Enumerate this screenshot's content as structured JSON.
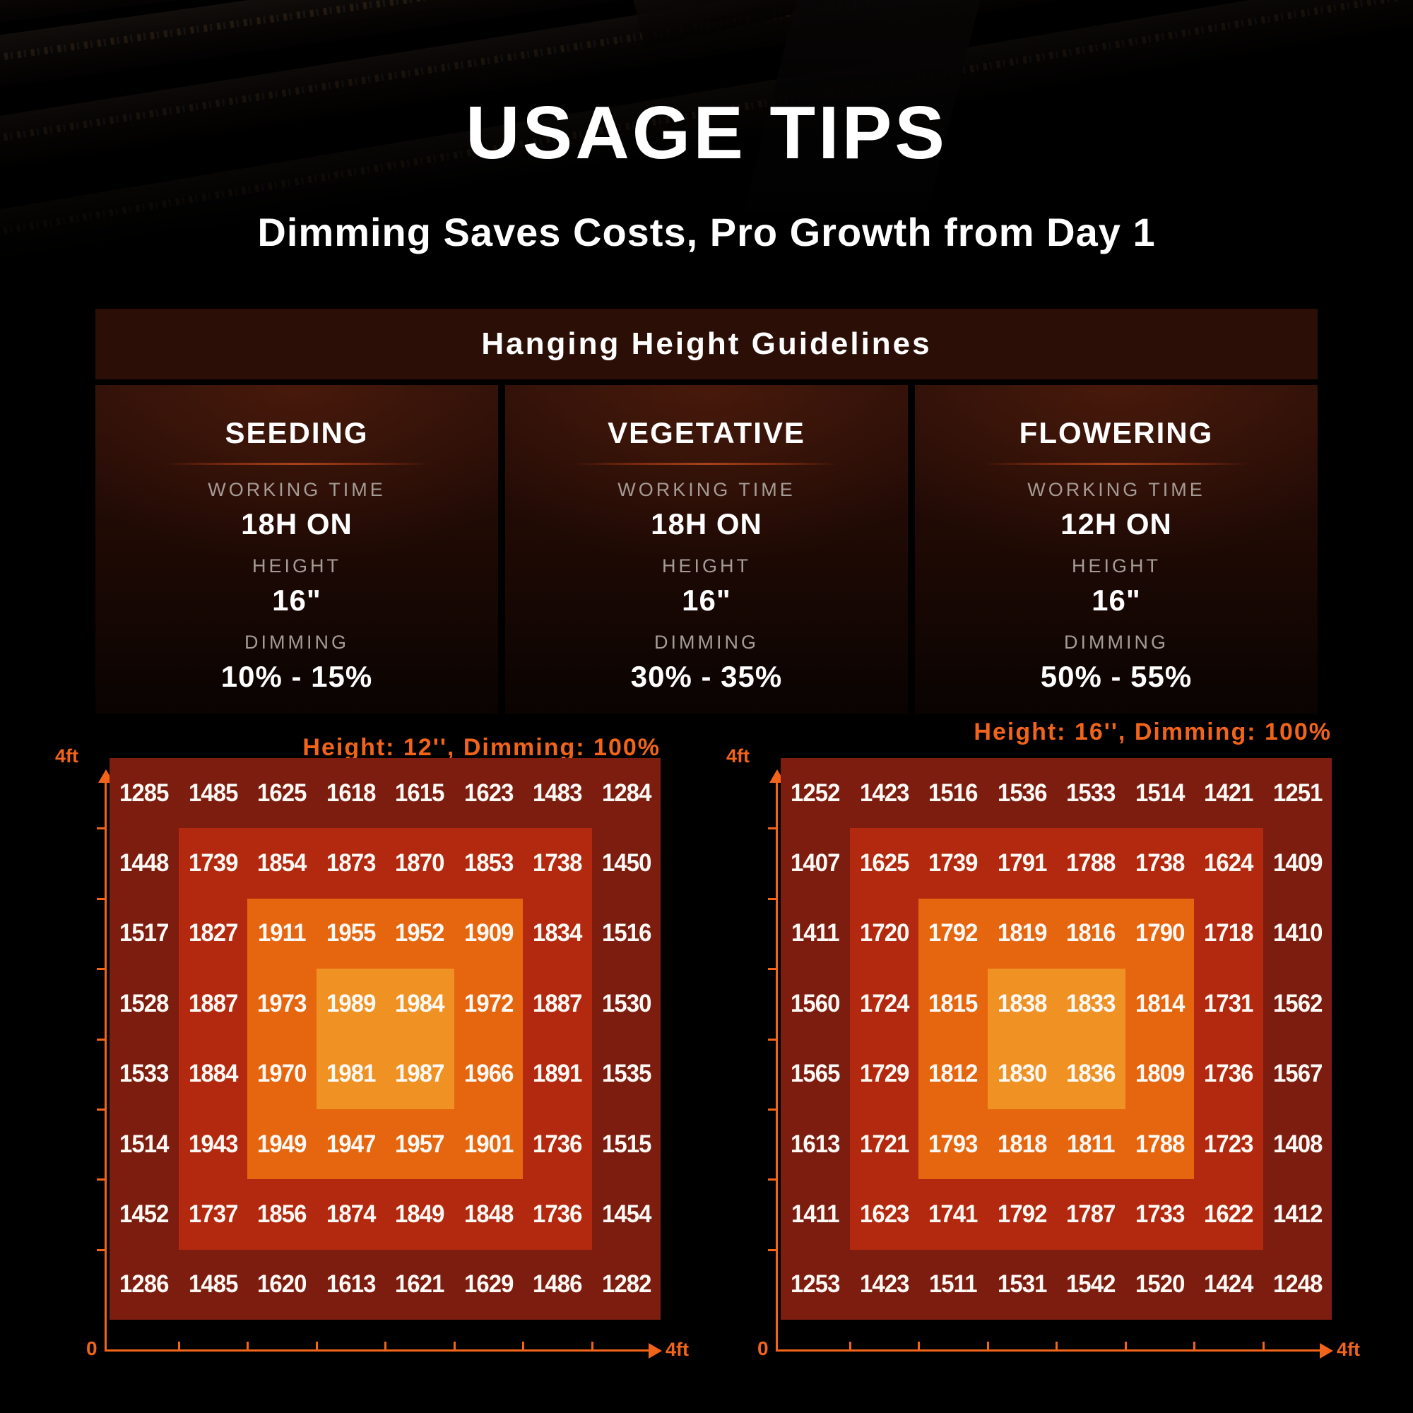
{
  "theme": {
    "accent_orange": "#f2641a",
    "panel_brown": "#2b0f07",
    "label_gray": "#a59c95",
    "zone_colors": [
      "#7c1d10",
      "#b2290f",
      "#e6650f",
      "#f09123"
    ]
  },
  "page": {
    "title": "USAGE TIPS",
    "subtitle": "Dimming Saves Costs, Pro Growth from Day 1"
  },
  "guidelines": {
    "header": "Hanging Height Guidelines",
    "stages": [
      {
        "name": "SEEDING",
        "working_time_label": "WORKING TIME",
        "working_time": "18H ON",
        "height_label": "HEIGHT",
        "height": "16\"",
        "dimming_label": "DIMMING",
        "dimming": "10% - 15%"
      },
      {
        "name": "VEGETATIVE",
        "working_time_label": "WORKING TIME",
        "working_time": "18H ON",
        "height_label": "HEIGHT",
        "height": "16\"",
        "dimming_label": "DIMMING",
        "dimming": "30% - 35%"
      },
      {
        "name": "FLOWERING",
        "working_time_label": "WORKING TIME",
        "working_time": "12H ON",
        "height_label": "HEIGHT",
        "height": "16\"",
        "dimming_label": "DIMMING",
        "dimming": "50% - 55%"
      }
    ]
  },
  "chart_data": [
    {
      "type": "heatmap",
      "title": "Height: 12'', Dimming: 100%",
      "rows": 8,
      "cols": 8,
      "x_axis": {
        "min_label": "0",
        "max_label": "4ft"
      },
      "y_axis": {
        "max_label": "4ft"
      },
      "zone_colors": [
        "#7c1d10",
        "#b2290f",
        "#e6650f",
        "#f09123"
      ],
      "values": [
        [
          1285,
          1485,
          1625,
          1618,
          1615,
          1623,
          1483,
          1284
        ],
        [
          1448,
          1739,
          1854,
          1873,
          1870,
          1853,
          1738,
          1450
        ],
        [
          1517,
          1827,
          1911,
          1955,
          1952,
          1909,
          1834,
          1516
        ],
        [
          1528,
          1887,
          1973,
          1989,
          1984,
          1972,
          1887,
          1530
        ],
        [
          1533,
          1884,
          1970,
          1981,
          1987,
          1966,
          1891,
          1535
        ],
        [
          1514,
          1943,
          1949,
          1947,
          1957,
          1901,
          1736,
          1515
        ],
        [
          1452,
          1737,
          1856,
          1874,
          1849,
          1848,
          1736,
          1454
        ],
        [
          1286,
          1485,
          1620,
          1613,
          1621,
          1629,
          1486,
          1282
        ]
      ]
    },
    {
      "type": "heatmap",
      "title": "Height: 16'', Dimming: 100%",
      "rows": 8,
      "cols": 8,
      "x_axis": {
        "min_label": "0",
        "max_label": "4ft"
      },
      "y_axis": {
        "max_label": "4ft"
      },
      "zone_colors": [
        "#7c1d10",
        "#b2290f",
        "#e6650f",
        "#f09123"
      ],
      "values": [
        [
          1252,
          1423,
          1516,
          1536,
          1533,
          1514,
          1421,
          1251
        ],
        [
          1407,
          1625,
          1739,
          1791,
          1788,
          1738,
          1624,
          1409
        ],
        [
          1411,
          1720,
          1792,
          1819,
          1816,
          1790,
          1718,
          1410
        ],
        [
          1560,
          1724,
          1815,
          1838,
          1833,
          1814,
          1731,
          1562
        ],
        [
          1565,
          1729,
          1812,
          1830,
          1836,
          1809,
          1736,
          1567
        ],
        [
          1613,
          1721,
          1793,
          1818,
          1811,
          1788,
          1723,
          1408
        ],
        [
          1411,
          1623,
          1741,
          1792,
          1787,
          1733,
          1622,
          1412
        ],
        [
          1253,
          1423,
          1511,
          1531,
          1542,
          1520,
          1424,
          1248
        ]
      ]
    }
  ]
}
